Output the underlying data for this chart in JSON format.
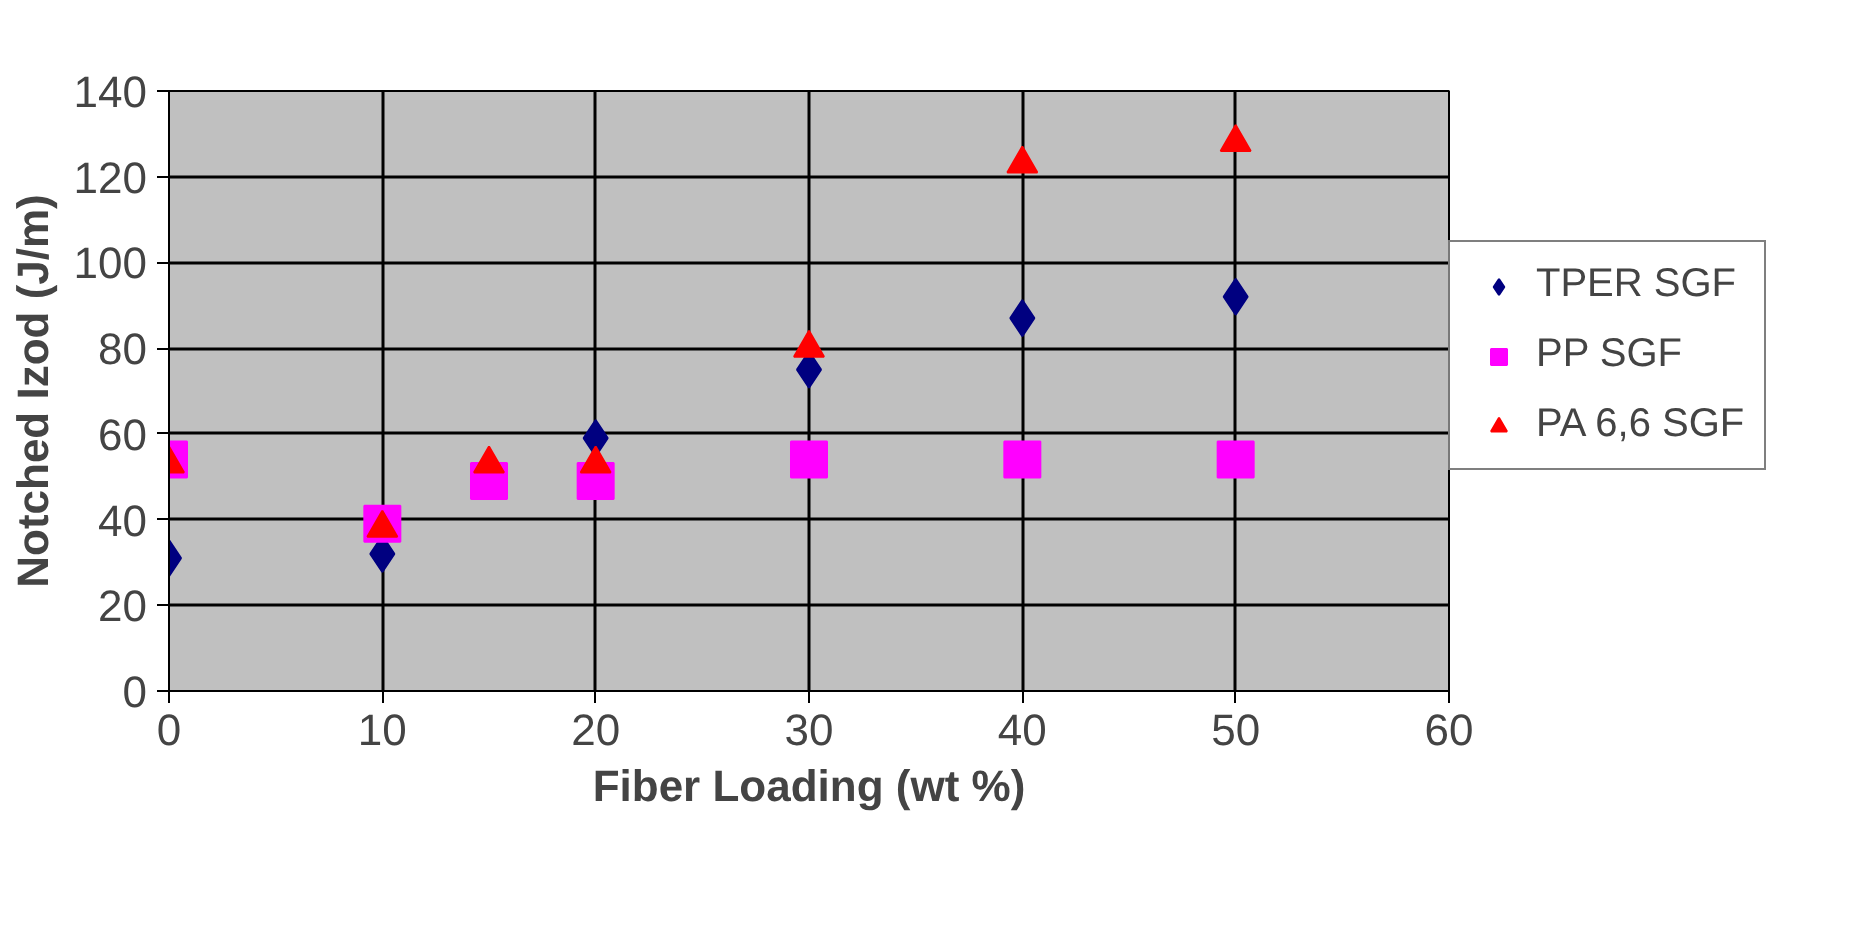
{
  "chart_data": {
    "type": "scatter",
    "xlabel": "Fiber Loading (wt %)",
    "ylabel": "Notched Izod (J/m)",
    "x": [
      0,
      10,
      15,
      20,
      30,
      40,
      50
    ],
    "series": [
      {
        "name": "TPER SGF",
        "color": "#000080",
        "marker": "diamond",
        "x": [
          0,
          10,
          20,
          30,
          40,
          50
        ],
        "values": [
          31,
          32,
          59,
          75,
          87,
          92
        ]
      },
      {
        "name": "PP SGF",
        "color": "#ff00ff",
        "marker": "square",
        "values": [
          54,
          39,
          49,
          49,
          54,
          54,
          54
        ]
      },
      {
        "name": "PA 6,6 SGF",
        "color": "#ff0000",
        "marker": "triangle",
        "values": [
          53,
          38,
          53,
          53,
          80,
          123,
          128
        ]
      }
    ],
    "xlim": [
      0,
      60
    ],
    "xticks": [
      0,
      10,
      20,
      30,
      40,
      50,
      60
    ],
    "ylim": [
      0,
      140
    ],
    "yticks": [
      0,
      20,
      40,
      60,
      80,
      100,
      120,
      140
    ],
    "grid": true,
    "legend": "right"
  }
}
